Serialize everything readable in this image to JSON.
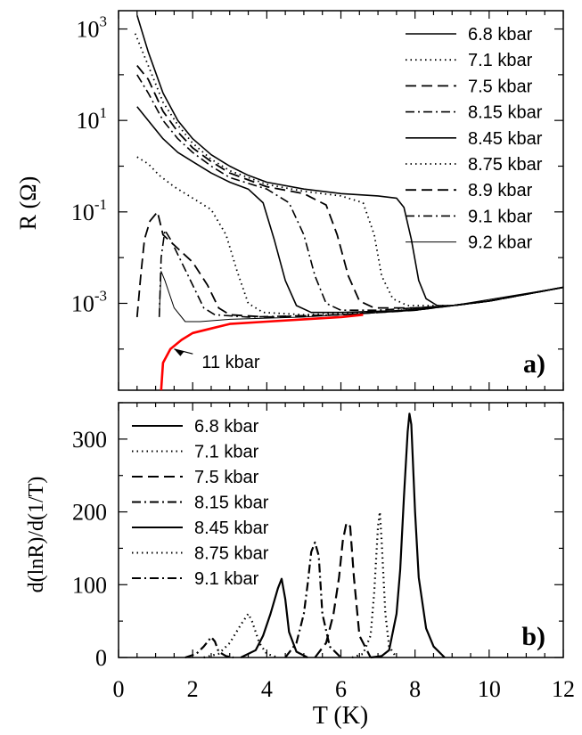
{
  "chart_data": [
    {
      "type": "line",
      "panel_label": "a)",
      "ylabel": "R (Ω)",
      "yscale": "log",
      "xlim": [
        0,
        12
      ],
      "ylim_log10": [
        -4.9,
        3.4
      ],
      "yticks": [
        {
          "exp": 3,
          "base": "10",
          "sup": "3"
        },
        {
          "exp": 1,
          "base": "10",
          "sup": "1"
        },
        {
          "exp": -1,
          "base": "10",
          "sup": "-1"
        },
        {
          "exp": -3,
          "base": "10",
          "sup": "-3"
        }
      ],
      "annotation": {
        "text": "11 kbar",
        "x": 2.1,
        "log10y": -4.3,
        "arrow_to_x": 1.5,
        "arrow_to_log10y": -4.0
      },
      "series": [
        {
          "name": "6.8 kbar",
          "style": "solid",
          "points": [
            [
              0.5,
              3.3
            ],
            [
              0.8,
              2.5
            ],
            [
              1.2,
              1.6
            ],
            [
              1.6,
              1.0
            ],
            [
              2.0,
              0.6
            ],
            [
              2.5,
              0.25
            ],
            [
              3.0,
              0.0
            ],
            [
              3.5,
              -0.2
            ],
            [
              4.0,
              -0.35
            ],
            [
              5.0,
              -0.5
            ],
            [
              6.0,
              -0.6
            ],
            [
              7.0,
              -0.65
            ],
            [
              7.5,
              -0.7
            ],
            [
              7.7,
              -0.9
            ],
            [
              7.9,
              -1.6
            ],
            [
              8.1,
              -2.5
            ],
            [
              8.3,
              -2.9
            ],
            [
              8.6,
              -3.05
            ],
            [
              9.0,
              -3.05
            ],
            [
              10,
              -2.95
            ],
            [
              11,
              -2.8
            ],
            [
              12,
              -2.65
            ]
          ]
        },
        {
          "name": "7.1 kbar",
          "style": "dotted",
          "points": [
            [
              0.45,
              2.9
            ],
            [
              0.8,
              2.2
            ],
            [
              1.2,
              1.4
            ],
            [
              1.6,
              0.9
            ],
            [
              2.0,
              0.5
            ],
            [
              2.5,
              0.15
            ],
            [
              3.0,
              -0.1
            ],
            [
              4.0,
              -0.4
            ],
            [
              5.0,
              -0.55
            ],
            [
              6.0,
              -0.65
            ],
            [
              6.6,
              -0.8
            ],
            [
              6.9,
              -1.5
            ],
            [
              7.1,
              -2.4
            ],
            [
              7.4,
              -2.9
            ],
            [
              7.8,
              -3.05
            ],
            [
              9.0,
              -3.05
            ],
            [
              10,
              -2.95
            ],
            [
              12,
              -2.65
            ]
          ]
        },
        {
          "name": "7.5 kbar",
          "style": "longdash",
          "points": [
            [
              0.5,
              2.2
            ],
            [
              0.8,
              1.9
            ],
            [
              1.2,
              1.2
            ],
            [
              1.6,
              0.75
            ],
            [
              2.0,
              0.4
            ],
            [
              2.5,
              0.1
            ],
            [
              3.0,
              -0.15
            ],
            [
              4.0,
              -0.45
            ],
            [
              5.0,
              -0.6
            ],
            [
              5.6,
              -0.85
            ],
            [
              5.9,
              -1.5
            ],
            [
              6.2,
              -2.4
            ],
            [
              6.5,
              -2.95
            ],
            [
              6.9,
              -3.1
            ],
            [
              8.0,
              -3.1
            ],
            [
              9.0,
              -3.05
            ],
            [
              10,
              -2.95
            ],
            [
              12,
              -2.65
            ]
          ]
        },
        {
          "name": "8.15 kbar",
          "style": "dashdot",
          "points": [
            [
              0.5,
              2.0
            ],
            [
              0.8,
              1.6
            ],
            [
              1.2,
              1.0
            ],
            [
              1.6,
              0.6
            ],
            [
              2.0,
              0.3
            ],
            [
              2.5,
              0.0
            ],
            [
              3.0,
              -0.25
            ],
            [
              4.0,
              -0.5
            ],
            [
              4.6,
              -0.8
            ],
            [
              5.0,
              -1.5
            ],
            [
              5.3,
              -2.4
            ],
            [
              5.6,
              -3.0
            ],
            [
              6.0,
              -3.15
            ],
            [
              7.0,
              -3.15
            ],
            [
              9.0,
              -3.05
            ],
            [
              10,
              -2.95
            ],
            [
              12,
              -2.65
            ]
          ]
        },
        {
          "name": "8.45 kbar",
          "style": "solid",
          "points": [
            [
              0.5,
              1.3
            ],
            [
              0.8,
              1.0
            ],
            [
              1.2,
              0.6
            ],
            [
              1.6,
              0.3
            ],
            [
              2.0,
              0.1
            ],
            [
              2.5,
              -0.15
            ],
            [
              3.0,
              -0.35
            ],
            [
              3.5,
              -0.5
            ],
            [
              3.9,
              -0.8
            ],
            [
              4.2,
              -1.6
            ],
            [
              4.5,
              -2.5
            ],
            [
              4.8,
              -3.05
            ],
            [
              5.2,
              -3.2
            ],
            [
              6.0,
              -3.2
            ],
            [
              8.0,
              -3.15
            ],
            [
              9.0,
              -3.05
            ],
            [
              10,
              -2.95
            ],
            [
              12,
              -2.65
            ]
          ]
        },
        {
          "name": "8.75 kbar",
          "style": "dotted",
          "points": [
            [
              0.5,
              0.2
            ],
            [
              0.8,
              0.05
            ],
            [
              1.1,
              -0.2
            ],
            [
              1.5,
              -0.45
            ],
            [
              2.0,
              -0.7
            ],
            [
              2.5,
              -0.95
            ],
            [
              2.9,
              -1.5
            ],
            [
              3.2,
              -2.3
            ],
            [
              3.5,
              -3.0
            ],
            [
              3.9,
              -3.2
            ],
            [
              5.0,
              -3.25
            ],
            [
              7.0,
              -3.2
            ],
            [
              9.0,
              -3.05
            ],
            [
              10,
              -2.95
            ],
            [
              12,
              -2.65
            ]
          ]
        },
        {
          "name": "8.9 kbar",
          "style": "longdash",
          "points": [
            [
              0.5,
              -3.3
            ],
            [
              0.6,
              -2.4
            ],
            [
              0.7,
              -1.6
            ],
            [
              0.85,
              -1.2
            ],
            [
              1.05,
              -1.0
            ],
            [
              1.2,
              -1.5
            ],
            [
              1.6,
              -1.8
            ],
            [
              2.0,
              -2.1
            ],
            [
              2.4,
              -2.6
            ],
            [
              2.7,
              -3.1
            ],
            [
              3.0,
              -3.25
            ],
            [
              4.0,
              -3.3
            ],
            [
              6.0,
              -3.25
            ],
            [
              8.0,
              -3.15
            ],
            [
              10,
              -2.95
            ],
            [
              12,
              -2.65
            ]
          ]
        },
        {
          "name": "9.1 kbar",
          "style": "dashdot",
          "points": [
            [
              1.1,
              -3.3
            ],
            [
              1.15,
              -2.0
            ],
            [
              1.25,
              -1.4
            ],
            [
              1.4,
              -1.6
            ],
            [
              1.7,
              -2.1
            ],
            [
              2.0,
              -2.6
            ],
            [
              2.3,
              -3.1
            ],
            [
              2.6,
              -3.25
            ],
            [
              3.5,
              -3.3
            ],
            [
              6.0,
              -3.25
            ],
            [
              8.0,
              -3.15
            ],
            [
              10,
              -2.95
            ],
            [
              12,
              -2.65
            ]
          ]
        },
        {
          "name": "9.2 kbar",
          "style": "thin",
          "points": [
            [
              1.1,
              -3.25
            ],
            [
              1.15,
              -2.3
            ],
            [
              1.25,
              -2.5
            ],
            [
              1.5,
              -3.1
            ],
            [
              1.8,
              -3.4
            ],
            [
              2.2,
              -3.4
            ],
            [
              3.0,
              -3.35
            ],
            [
              5.0,
              -3.3
            ],
            [
              7.0,
              -3.2
            ],
            [
              9.0,
              -3.05
            ],
            [
              12,
              -2.65
            ]
          ]
        },
        {
          "name": "11 kbar",
          "style": "red",
          "points": [
            [
              1.15,
              -4.9
            ],
            [
              1.2,
              -4.3
            ],
            [
              1.4,
              -4.0
            ],
            [
              1.7,
              -3.8
            ],
            [
              2.0,
              -3.65
            ],
            [
              2.5,
              -3.55
            ],
            [
              3.0,
              -3.45
            ],
            [
              4.0,
              -3.4
            ],
            [
              5.0,
              -3.35
            ],
            [
              6.0,
              -3.3
            ],
            [
              6.6,
              -3.25
            ]
          ]
        }
      ],
      "legend": [
        {
          "label": "6.8 kbar",
          "style": "solid"
        },
        {
          "label": "7.1 kbar",
          "style": "dotted"
        },
        {
          "label": "7.5 kbar",
          "style": "longdash"
        },
        {
          "label": "8.15 kbar",
          "style": "dashdot"
        },
        {
          "label": "8.45 kbar",
          "style": "solid"
        },
        {
          "label": "8.75 kbar",
          "style": "dotted"
        },
        {
          "label": "8.9 kbar",
          "style": "longdash"
        },
        {
          "label": "9.1 kbar",
          "style": "dashdot"
        },
        {
          "label": "9.2 kbar",
          "style": "thin"
        }
      ]
    },
    {
      "type": "line",
      "panel_label": "b)",
      "xlabel": "T (K)",
      "ylabel": "d(lnR)/d(1/T)",
      "xlim": [
        0,
        12
      ],
      "ylim": [
        0,
        350
      ],
      "xticks": [
        0,
        2,
        4,
        6,
        8,
        10,
        12
      ],
      "yticks": [
        0,
        100,
        200,
        300
      ],
      "series": [
        {
          "name": "6.8 kbar",
          "style": "solid",
          "x": [
            6.8,
            7.1,
            7.3,
            7.5,
            7.6,
            7.7,
            7.8,
            7.85,
            7.9,
            8.0,
            8.1,
            8.3,
            8.5,
            8.8
          ],
          "y": [
            0,
            2,
            10,
            60,
            120,
            220,
            310,
            335,
            320,
            200,
            110,
            40,
            15,
            0
          ]
        },
        {
          "name": "7.1 kbar",
          "style": "dotted",
          "x": [
            6.3,
            6.6,
            6.8,
            6.9,
            7.0,
            7.05,
            7.1,
            7.2,
            7.3,
            7.5
          ],
          "y": [
            0,
            5,
            30,
            90,
            180,
            200,
            160,
            60,
            15,
            0
          ]
        },
        {
          "name": "7.5 kbar",
          "style": "longdash",
          "x": [
            5.3,
            5.6,
            5.8,
            5.95,
            6.05,
            6.15,
            6.25,
            6.35,
            6.5,
            6.8
          ],
          "y": [
            0,
            20,
            60,
            110,
            160,
            185,
            180,
            110,
            30,
            0
          ]
        },
        {
          "name": "8.15 kbar",
          "style": "dashdot",
          "x": [
            4.5,
            4.8,
            5.0,
            5.1,
            5.2,
            5.3,
            5.4,
            5.5,
            5.7,
            6.0
          ],
          "y": [
            0,
            20,
            60,
            100,
            145,
            158,
            140,
            60,
            15,
            0
          ]
        },
        {
          "name": "8.45 kbar",
          "style": "solid",
          "x": [
            3.3,
            3.7,
            3.9,
            4.1,
            4.3,
            4.4,
            4.5,
            4.6,
            4.8,
            5.1
          ],
          "y": [
            0,
            10,
            30,
            60,
            95,
            108,
            80,
            35,
            8,
            0
          ]
        },
        {
          "name": "8.75 kbar",
          "style": "dotted",
          "x": [
            2.3,
            2.7,
            3.0,
            3.3,
            3.5,
            3.6,
            3.8,
            4.0,
            4.3
          ],
          "y": [
            0,
            5,
            20,
            45,
            60,
            50,
            20,
            5,
            0
          ]
        },
        {
          "name": "9.1 kbar",
          "style": "dashdot",
          "x": [
            1.8,
            2.1,
            2.3,
            2.5,
            2.6,
            2.7,
            2.9,
            3.1
          ],
          "y": [
            0,
            5,
            15,
            28,
            22,
            8,
            2,
            0
          ]
        }
      ],
      "legend": [
        {
          "label": "6.8 kbar",
          "style": "solid"
        },
        {
          "label": "7.1 kbar",
          "style": "dotted"
        },
        {
          "label": "7.5 kbar",
          "style": "longdash"
        },
        {
          "label": "8.15 kbar",
          "style": "dashdot"
        },
        {
          "label": "8.45 kbar",
          "style": "solid"
        },
        {
          "label": "8.75 kbar",
          "style": "dotted"
        },
        {
          "label": "9.1 kbar",
          "style": "dashdot"
        }
      ]
    }
  ],
  "colors": {
    "axis": "#000000",
    "line": "#000000",
    "highlight": "#ff0000"
  }
}
